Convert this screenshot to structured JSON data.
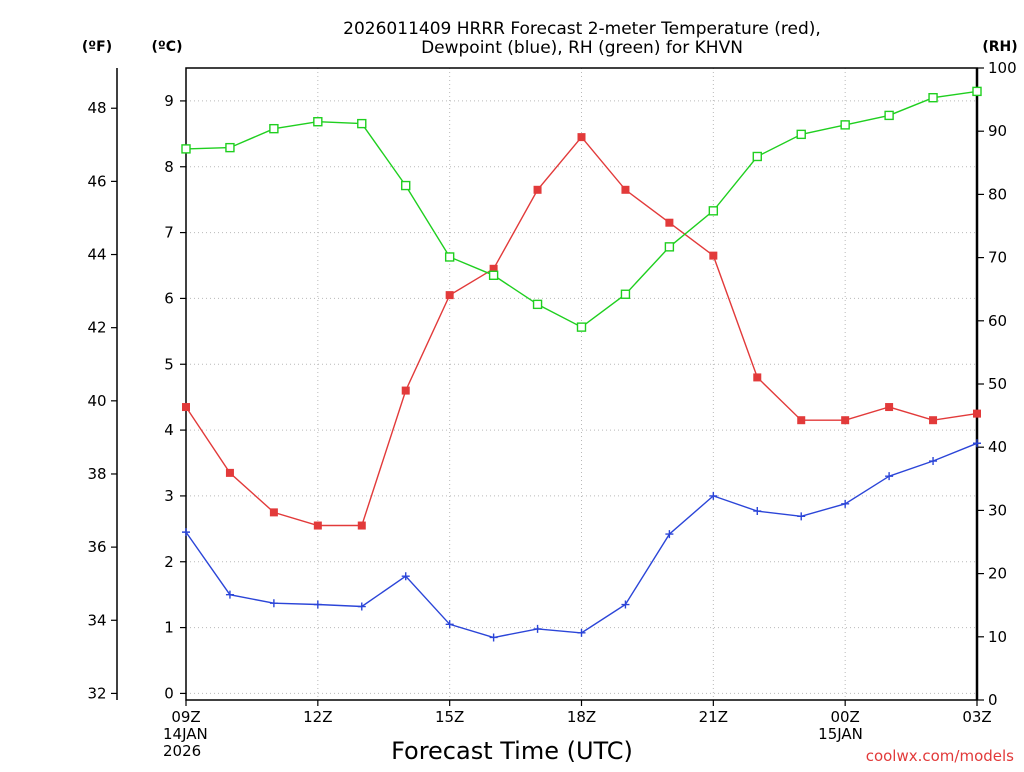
{
  "chart_data": {
    "type": "line",
    "title_line1": "2026011409 HRRR Forecast 2-meter Temperature (red),",
    "title_line2": "Dewpoint (blue), RH (green) for KHVN",
    "xlabel": "Forecast Time (UTC)",
    "credit": "coolwx.com/models",
    "units": {
      "fahrenheit": "(ºF)",
      "celsius": "(ºC)",
      "rh": "(RH)"
    },
    "colors": {
      "temperature": "#e23a3a",
      "dewpoint": "#2b45d8",
      "rh": "#1fcf1f"
    },
    "x_hours": [
      0,
      1,
      2,
      3,
      4,
      5,
      6,
      7,
      8,
      9,
      10,
      11,
      12,
      13,
      14,
      15,
      16,
      17,
      18
    ],
    "x_ticks": [
      {
        "hour": 0,
        "lines": [
          "09Z",
          "14JAN",
          "2026"
        ]
      },
      {
        "hour": 3,
        "lines": [
          "12Z"
        ]
      },
      {
        "hour": 6,
        "lines": [
          "15Z"
        ]
      },
      {
        "hour": 9,
        "lines": [
          "18Z"
        ]
      },
      {
        "hour": 12,
        "lines": [
          "21Z"
        ]
      },
      {
        "hour": 15,
        "lines": [
          "00Z",
          "15JAN"
        ]
      },
      {
        "hour": 18,
        "lines": [
          "03Z"
        ]
      }
    ],
    "celsius_ylim": [
      -0.1,
      9.5
    ],
    "celsius_ticks": [
      0,
      1,
      2,
      3,
      4,
      5,
      6,
      7,
      8,
      9
    ],
    "fahrenheit_ticks": [
      32,
      34,
      36,
      38,
      40,
      42,
      44,
      46,
      48
    ],
    "rh_ylim": [
      0,
      100
    ],
    "rh_ticks": [
      0,
      10,
      20,
      30,
      40,
      50,
      60,
      70,
      80,
      90,
      100
    ],
    "series": [
      {
        "name": "Temperature",
        "unit": "C",
        "marker": "filled-square",
        "values": [
          4.35,
          3.35,
          2.75,
          2.55,
          2.55,
          4.6,
          6.05,
          6.45,
          7.65,
          8.45,
          7.65,
          7.15,
          6.65,
          4.8,
          4.15,
          4.15,
          4.35,
          4.15,
          4.25
        ]
      },
      {
        "name": "Dewpoint",
        "unit": "C",
        "marker": "plus",
        "values": [
          2.45,
          1.5,
          1.37,
          1.35,
          1.32,
          1.78,
          1.05,
          0.85,
          0.98,
          0.92,
          1.35,
          2.42,
          3.0,
          2.77,
          2.69,
          2.88,
          3.3,
          3.53,
          3.8
        ]
      },
      {
        "name": "RH",
        "unit": "%",
        "marker": "open-square",
        "values": [
          87.2,
          87.4,
          90.4,
          91.5,
          91.2,
          81.4,
          70.1,
          67.2,
          62.6,
          59.0,
          64.2,
          71.7,
          77.4,
          86.0,
          89.5,
          91.0,
          92.5,
          95.3,
          96.3
        ]
      }
    ]
  }
}
